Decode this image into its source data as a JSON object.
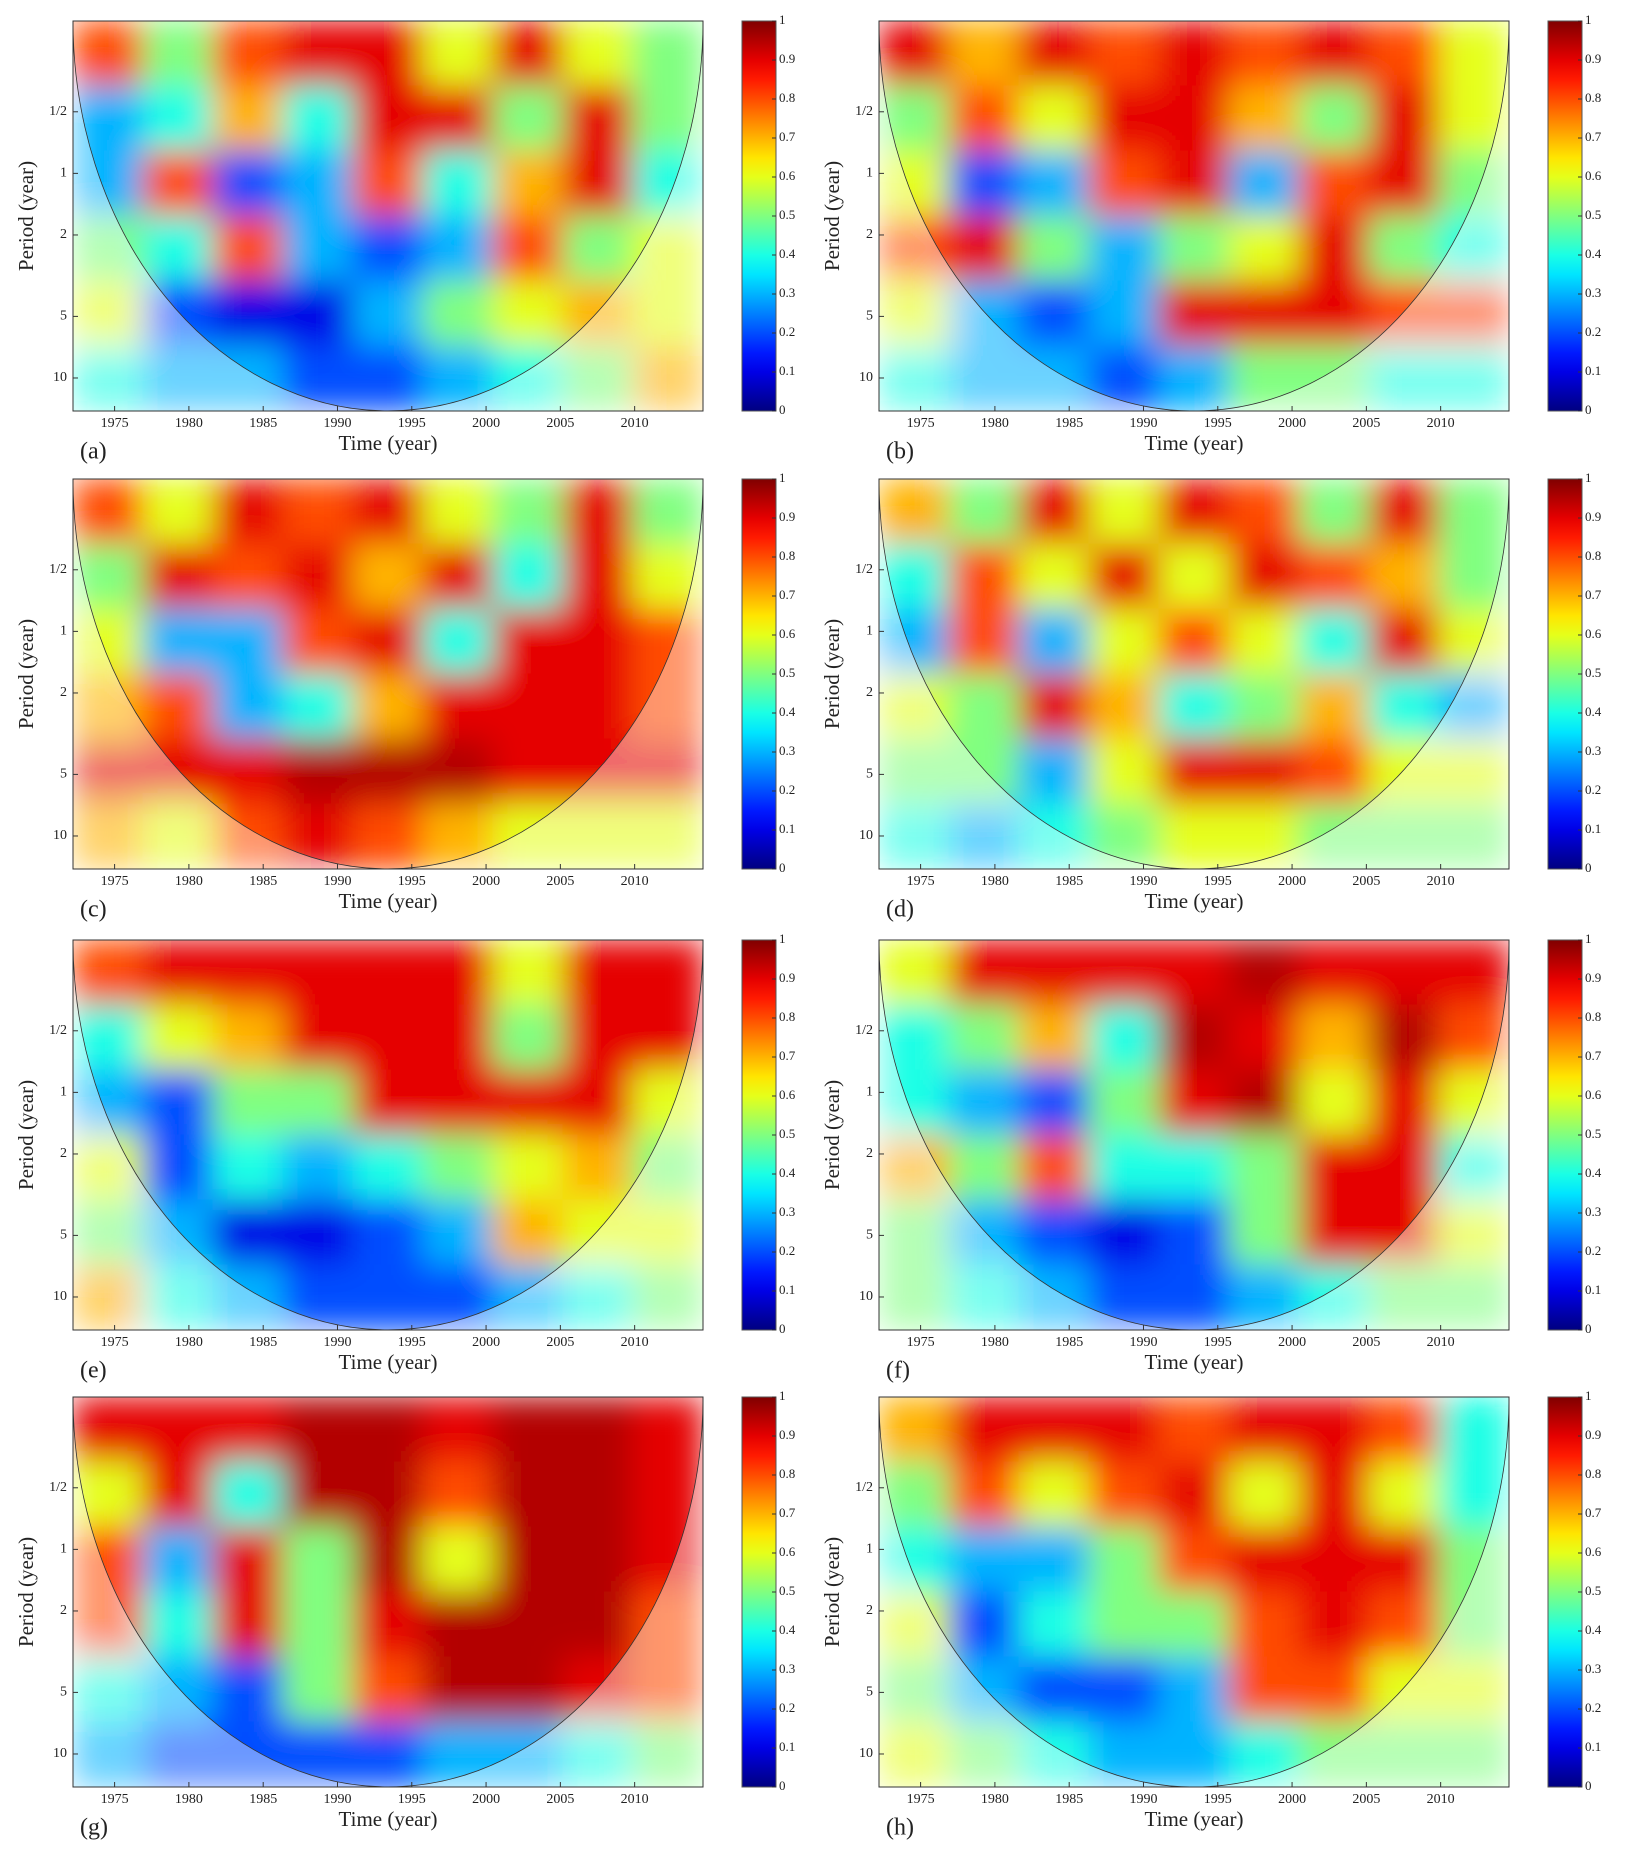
{
  "chart_data": [
    {
      "type": "heatmap",
      "panel_label": "(a)",
      "xlabel": "Time (year)",
      "ylabel": "Period (year)",
      "colormap": "jet",
      "log_y": true,
      "y_inverted": true,
      "xlim": [
        1972.2,
        2014.6
      ],
      "xticks": [
        1975,
        1980,
        1985,
        1990,
        1995,
        2000,
        2005,
        2010
      ],
      "ylim": [
        0.18,
        14.5
      ],
      "yticks": [
        {
          "value": 0.5,
          "label": "1/2"
        },
        1,
        2,
        5,
        10
      ],
      "clim": [
        0,
        1
      ],
      "cticks": [
        0,
        0.1,
        0.2,
        0.3,
        0.4,
        0.5,
        0.6,
        0.7,
        0.8,
        0.9,
        1
      ],
      "z": [
        [
          0.8,
          0.5,
          0.8,
          0.9,
          0.9,
          0.6,
          0.9,
          0.6,
          0.5
        ],
        [
          0.3,
          0.4,
          0.7,
          0.4,
          0.9,
          0.9,
          0.5,
          0.9,
          0.5
        ],
        [
          0.3,
          0.8,
          0.2,
          0.3,
          0.8,
          0.4,
          0.7,
          0.9,
          0.4
        ],
        [
          0.5,
          0.4,
          0.8,
          0.3,
          0.2,
          0.3,
          0.8,
          0.5,
          0.6
        ],
        [
          0.6,
          0.2,
          0.1,
          0.1,
          0.3,
          0.5,
          0.6,
          0.7,
          0.6
        ],
        [
          0.4,
          0.3,
          0.3,
          0.2,
          0.2,
          0.3,
          0.4,
          0.5,
          0.7
        ]
      ]
    },
    {
      "type": "heatmap",
      "panel_label": "(b)",
      "xlabel": "Time (year)",
      "ylabel": "Period (year)",
      "colormap": "jet",
      "log_y": true,
      "y_inverted": true,
      "xlim": [
        1972.2,
        2014.6
      ],
      "xticks": [
        1975,
        1980,
        1985,
        1990,
        1995,
        2000,
        2005,
        2010
      ],
      "ylim": [
        0.18,
        14.5
      ],
      "yticks": [
        {
          "value": 0.5,
          "label": "1/2"
        },
        1,
        2,
        5,
        10
      ],
      "clim": [
        0,
        1
      ],
      "cticks": [
        0,
        0.1,
        0.2,
        0.3,
        0.4,
        0.5,
        0.6,
        0.7,
        0.8,
        0.9,
        1
      ],
      "z": [
        [
          0.9,
          0.7,
          0.9,
          0.8,
          0.9,
          0.8,
          0.9,
          0.8,
          0.6
        ],
        [
          0.5,
          0.8,
          0.6,
          0.9,
          0.9,
          0.7,
          0.5,
          0.9,
          0.6
        ],
        [
          0.6,
          0.2,
          0.3,
          0.8,
          0.9,
          0.3,
          0.8,
          0.9,
          0.5
        ],
        [
          0.8,
          0.9,
          0.5,
          0.3,
          0.5,
          0.6,
          0.9,
          0.5,
          0.4
        ],
        [
          0.6,
          0.3,
          0.2,
          0.3,
          0.9,
          0.9,
          0.9,
          0.8,
          0.8
        ],
        [
          0.4,
          0.3,
          0.3,
          0.2,
          0.3,
          0.5,
          0.5,
          0.4,
          0.4
        ]
      ]
    },
    {
      "type": "heatmap",
      "panel_label": "(c)",
      "xlabel": "Time (year)",
      "ylabel": "Period (year)",
      "colormap": "jet",
      "log_y": true,
      "y_inverted": true,
      "xlim": [
        1972.2,
        2014.6
      ],
      "xticks": [
        1975,
        1980,
        1985,
        1990,
        1995,
        2000,
        2005,
        2010
      ],
      "ylim": [
        0.18,
        14.5
      ],
      "yticks": [
        {
          "value": 0.5,
          "label": "1/2"
        },
        1,
        2,
        5,
        10
      ],
      "clim": [
        0,
        1
      ],
      "cticks": [
        0,
        0.1,
        0.2,
        0.3,
        0.4,
        0.5,
        0.6,
        0.7,
        0.8,
        0.9,
        1
      ],
      "z": [
        [
          0.8,
          0.6,
          0.9,
          0.8,
          0.9,
          0.6,
          0.5,
          0.9,
          0.5
        ],
        [
          0.5,
          0.9,
          0.8,
          0.9,
          0.7,
          0.9,
          0.4,
          0.9,
          0.6
        ],
        [
          0.6,
          0.3,
          0.3,
          0.8,
          0.9,
          0.4,
          0.9,
          0.9,
          0.8
        ],
        [
          0.7,
          0.8,
          0.3,
          0.4,
          0.7,
          0.9,
          0.9,
          0.9,
          0.8
        ],
        [
          0.9,
          0.9,
          0.9,
          0.95,
          0.95,
          0.95,
          0.9,
          0.9,
          0.9
        ],
        [
          0.7,
          0.6,
          0.8,
          0.9,
          0.8,
          0.7,
          0.6,
          0.6,
          0.6
        ]
      ]
    },
    {
      "type": "heatmap",
      "panel_label": "(d)",
      "xlabel": "Time (year)",
      "ylabel": "Period (year)",
      "colormap": "jet",
      "log_y": true,
      "y_inverted": true,
      "xlim": [
        1972.2,
        2014.6
      ],
      "xticks": [
        1975,
        1980,
        1985,
        1990,
        1995,
        2000,
        2005,
        2010
      ],
      "ylim": [
        0.18,
        14.5
      ],
      "yticks": [
        {
          "value": 0.5,
          "label": "1/2"
        },
        1,
        2,
        5,
        10
      ],
      "clim": [
        0,
        1
      ],
      "cticks": [
        0,
        0.1,
        0.2,
        0.3,
        0.4,
        0.5,
        0.6,
        0.7,
        0.8,
        0.9,
        1
      ],
      "z": [
        [
          0.7,
          0.5,
          0.9,
          0.6,
          0.9,
          0.8,
          0.5,
          0.9,
          0.5
        ],
        [
          0.4,
          0.8,
          0.6,
          0.9,
          0.6,
          0.9,
          0.8,
          0.7,
          0.5
        ],
        [
          0.3,
          0.8,
          0.3,
          0.6,
          0.8,
          0.6,
          0.4,
          0.9,
          0.6
        ],
        [
          0.6,
          0.5,
          0.9,
          0.7,
          0.4,
          0.5,
          0.7,
          0.4,
          0.3
        ],
        [
          0.5,
          0.5,
          0.3,
          0.6,
          0.9,
          0.9,
          0.8,
          0.6,
          0.6
        ],
        [
          0.4,
          0.3,
          0.4,
          0.5,
          0.6,
          0.6,
          0.5,
          0.5,
          0.5
        ]
      ]
    },
    {
      "type": "heatmap",
      "panel_label": "(e)",
      "xlabel": "Time (year)",
      "ylabel": "Period (year)",
      "colormap": "jet",
      "log_y": true,
      "y_inverted": true,
      "xlim": [
        1972.2,
        2014.6
      ],
      "xticks": [
        1975,
        1980,
        1985,
        1990,
        1995,
        2000,
        2005,
        2010
      ],
      "ylim": [
        0.18,
        14.5
      ],
      "yticks": [
        {
          "value": 0.5,
          "label": "1/2"
        },
        1,
        2,
        5,
        10
      ],
      "clim": [
        0,
        1
      ],
      "cticks": [
        0,
        0.1,
        0.2,
        0.3,
        0.4,
        0.5,
        0.6,
        0.7,
        0.8,
        0.9,
        1
      ],
      "z": [
        [
          0.8,
          0.9,
          0.9,
          0.9,
          0.9,
          0.9,
          0.6,
          0.9,
          0.9
        ],
        [
          0.4,
          0.6,
          0.7,
          0.9,
          0.9,
          0.9,
          0.5,
          0.9,
          0.9
        ],
        [
          0.3,
          0.2,
          0.5,
          0.5,
          0.9,
          0.9,
          0.9,
          0.9,
          0.6
        ],
        [
          0.6,
          0.2,
          0.4,
          0.3,
          0.4,
          0.5,
          0.6,
          0.7,
          0.5
        ],
        [
          0.5,
          0.3,
          0.1,
          0.1,
          0.2,
          0.3,
          0.7,
          0.6,
          0.6
        ],
        [
          0.7,
          0.4,
          0.3,
          0.2,
          0.2,
          0.2,
          0.3,
          0.4,
          0.5
        ]
      ]
    },
    {
      "type": "heatmap",
      "panel_label": "(f)",
      "xlabel": "Time (year)",
      "ylabel": "Period (year)",
      "colormap": "jet",
      "log_y": true,
      "y_inverted": true,
      "xlim": [
        1972.2,
        2014.6
      ],
      "xticks": [
        1975,
        1980,
        1985,
        1990,
        1995,
        2000,
        2005,
        2010
      ],
      "ylim": [
        0.18,
        14.5
      ],
      "yticks": [
        {
          "value": 0.5,
          "label": "1/2"
        },
        1,
        2,
        5,
        10
      ],
      "clim": [
        0,
        1
      ],
      "cticks": [
        0,
        0.1,
        0.2,
        0.3,
        0.4,
        0.5,
        0.6,
        0.7,
        0.8,
        0.9,
        1
      ],
      "z": [
        [
          0.6,
          0.9,
          0.9,
          0.9,
          0.9,
          0.95,
          0.9,
          0.9,
          0.9
        ],
        [
          0.4,
          0.5,
          0.7,
          0.4,
          0.95,
          0.9,
          0.7,
          0.95,
          0.8
        ],
        [
          0.4,
          0.3,
          0.2,
          0.5,
          0.9,
          0.95,
          0.6,
          0.9,
          0.6
        ],
        [
          0.7,
          0.5,
          0.8,
          0.4,
          0.4,
          0.5,
          0.9,
          0.9,
          0.4
        ],
        [
          0.5,
          0.3,
          0.2,
          0.1,
          0.2,
          0.5,
          0.9,
          0.9,
          0.6
        ],
        [
          0.5,
          0.4,
          0.3,
          0.2,
          0.2,
          0.3,
          0.4,
          0.5,
          0.5
        ]
      ]
    },
    {
      "type": "heatmap",
      "panel_label": "(g)",
      "xlabel": "Time (year)",
      "ylabel": "Period (year)",
      "colormap": "jet",
      "log_y": true,
      "y_inverted": true,
      "xlim": [
        1972.2,
        2014.6
      ],
      "xticks": [
        1975,
        1980,
        1985,
        1990,
        1995,
        2000,
        2005,
        2010
      ],
      "ylim": [
        0.18,
        14.5
      ],
      "yticks": [
        {
          "value": 0.5,
          "label": "1/2"
        },
        1,
        2,
        5,
        10
      ],
      "clim": [
        0,
        1
      ],
      "cticks": [
        0,
        0.1,
        0.2,
        0.3,
        0.4,
        0.5,
        0.6,
        0.7,
        0.8,
        0.9,
        1
      ],
      "z": [
        [
          0.9,
          0.9,
          0.9,
          0.95,
          0.95,
          0.9,
          0.95,
          0.95,
          0.9
        ],
        [
          0.6,
          0.9,
          0.4,
          0.95,
          0.95,
          0.8,
          0.95,
          0.95,
          0.9
        ],
        [
          0.8,
          0.3,
          0.9,
          0.5,
          0.95,
          0.6,
          0.95,
          0.95,
          0.9
        ],
        [
          0.8,
          0.4,
          0.9,
          0.5,
          0.9,
          0.95,
          0.95,
          0.95,
          0.8
        ],
        [
          0.4,
          0.3,
          0.2,
          0.5,
          0.8,
          0.95,
          0.95,
          0.9,
          0.8
        ],
        [
          0.3,
          0.2,
          0.2,
          0.2,
          0.2,
          0.3,
          0.3,
          0.4,
          0.5
        ]
      ]
    },
    {
      "type": "heatmap",
      "panel_label": "(h)",
      "xlabel": "Time (year)",
      "ylabel": "Period (year)",
      "colormap": "jet",
      "log_y": true,
      "y_inverted": true,
      "xlim": [
        1972.2,
        2014.6
      ],
      "xticks": [
        1975,
        1980,
        1985,
        1990,
        1995,
        2000,
        2005,
        2010
      ],
      "ylim": [
        0.18,
        14.5
      ],
      "yticks": [
        {
          "value": 0.5,
          "label": "1/2"
        },
        1,
        2,
        5,
        10
      ],
      "clim": [
        0,
        1
      ],
      "cticks": [
        0,
        0.1,
        0.2,
        0.3,
        0.4,
        0.5,
        0.6,
        0.7,
        0.8,
        0.9,
        1
      ],
      "z": [
        [
          0.7,
          0.9,
          0.9,
          0.9,
          0.8,
          0.9,
          0.9,
          0.8,
          0.4
        ],
        [
          0.5,
          0.8,
          0.6,
          0.8,
          0.9,
          0.6,
          0.9,
          0.6,
          0.4
        ],
        [
          0.4,
          0.3,
          0.3,
          0.5,
          0.8,
          0.9,
          0.9,
          0.9,
          0.5
        ],
        [
          0.6,
          0.2,
          0.4,
          0.5,
          0.5,
          0.8,
          0.9,
          0.8,
          0.5
        ],
        [
          0.5,
          0.3,
          0.2,
          0.2,
          0.3,
          0.8,
          0.8,
          0.6,
          0.6
        ],
        [
          0.6,
          0.5,
          0.4,
          0.3,
          0.3,
          0.4,
          0.5,
          0.5,
          0.5
        ]
      ]
    }
  ]
}
